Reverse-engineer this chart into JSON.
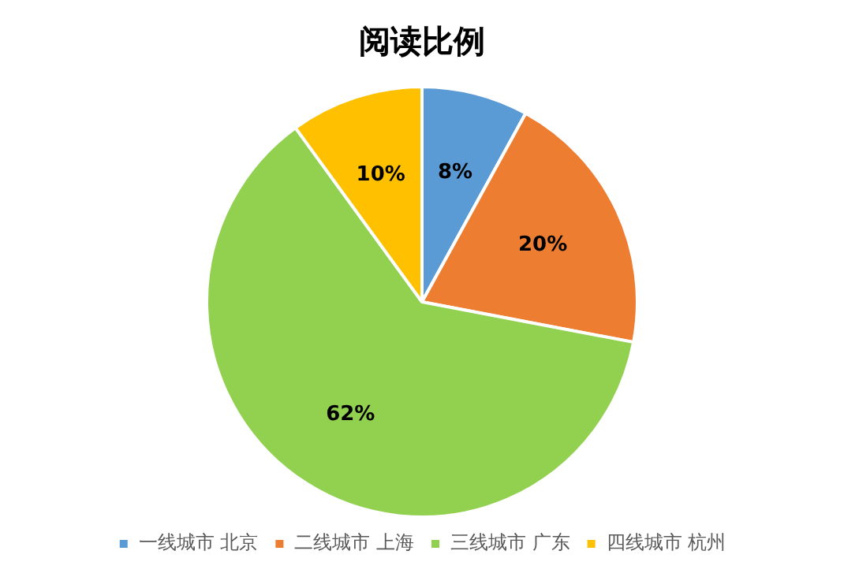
{
  "chart_data": {
    "type": "pie",
    "title": "阅读比例",
    "categories": [
      "一线城市 北京",
      "二线城市 上海",
      "三线城市 广东",
      "四线城市 杭州"
    ],
    "values": [
      8,
      20,
      62,
      10
    ],
    "value_labels": [
      "8%",
      "20%",
      "62%",
      "10%"
    ],
    "colors": [
      "#5b9bd5",
      "#ed7d31",
      "#92d050",
      "#ffc000"
    ],
    "legend": "bottom"
  }
}
